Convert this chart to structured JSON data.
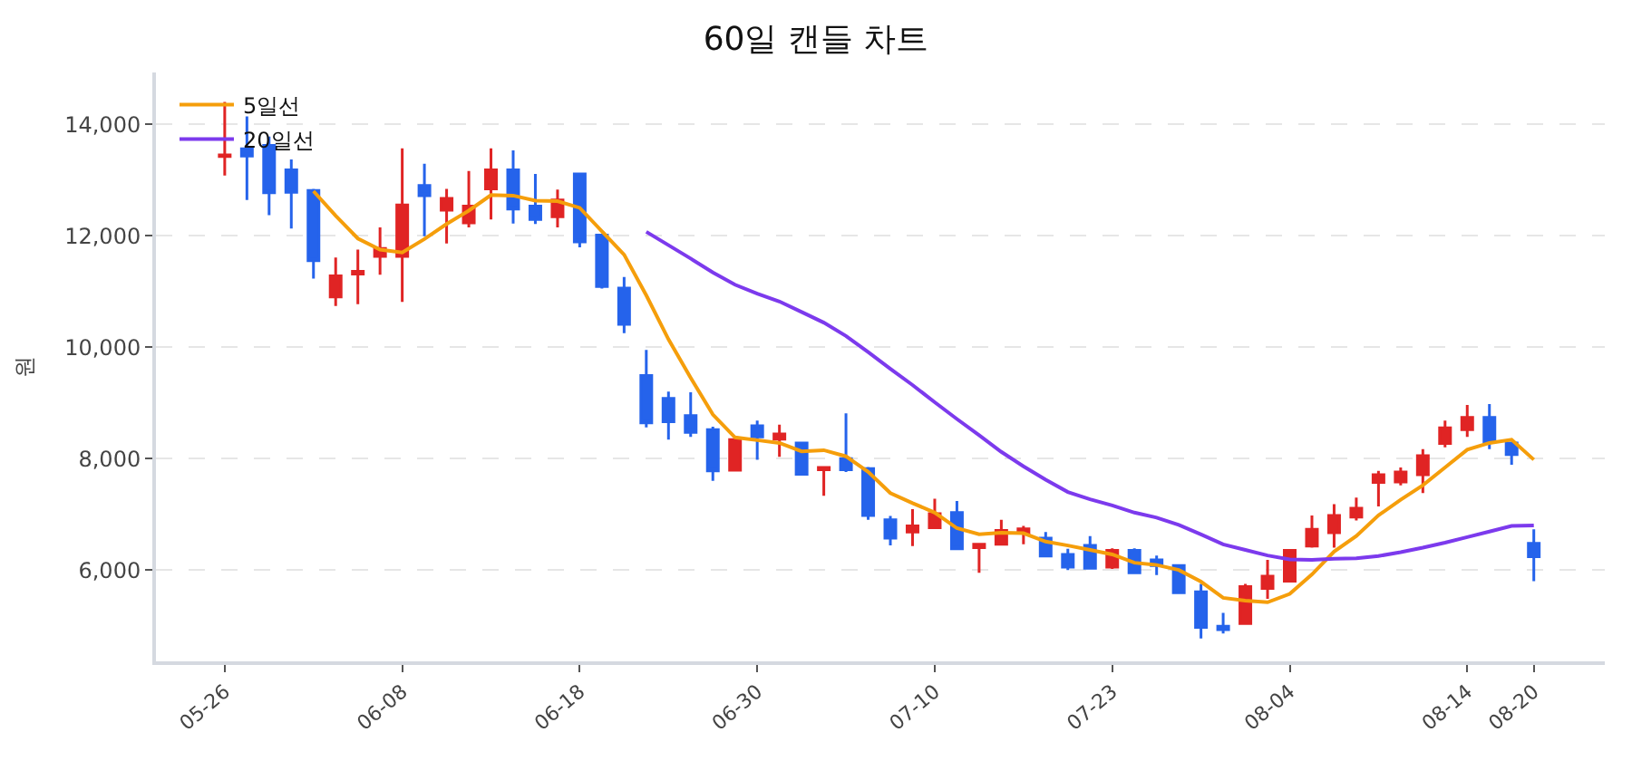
{
  "chart_data": {
    "type": "candlestick",
    "title": "60일 캔들 차트",
    "ylabel": "원",
    "categories": [
      "05-26",
      null,
      null,
      null,
      null,
      null,
      null,
      null,
      "06-08",
      null,
      null,
      null,
      null,
      null,
      null,
      null,
      "06-18",
      null,
      null,
      null,
      null,
      null,
      null,
      null,
      "06-30",
      null,
      null,
      null,
      null,
      null,
      null,
      null,
      "07-10",
      null,
      null,
      null,
      null,
      null,
      null,
      null,
      "07-23",
      null,
      null,
      null,
      null,
      null,
      null,
      null,
      "08-04",
      null,
      null,
      null,
      null,
      null,
      null,
      null,
      "08-14",
      null,
      null,
      "08-20"
    ],
    "ohlc": [
      [
        13420,
        14400,
        13080,
        13450
      ],
      [
        13560,
        14140,
        12640,
        13430
      ],
      [
        13620,
        13780,
        12370,
        12770
      ],
      [
        13180,
        13370,
        12130,
        12780
      ],
      [
        12810,
        12840,
        11230,
        11550
      ],
      [
        10900,
        11610,
        10740,
        11280
      ],
      [
        11310,
        11750,
        10770,
        11360
      ],
      [
        11630,
        12150,
        11300,
        11770
      ],
      [
        11630,
        13570,
        10810,
        12550
      ],
      [
        12900,
        13290,
        11990,
        12720
      ],
      [
        12460,
        12840,
        11860,
        12670
      ],
      [
        12230,
        13160,
        12150,
        12530
      ],
      [
        12840,
        13570,
        12290,
        13180
      ],
      [
        13180,
        13530,
        12220,
        12480
      ],
      [
        12530,
        13110,
        12210,
        12290
      ],
      [
        12340,
        12830,
        12150,
        12640
      ],
      [
        13110,
        13110,
        11790,
        11890
      ],
      [
        12010,
        12010,
        11050,
        11090
      ],
      [
        11060,
        11260,
        10250,
        10410
      ],
      [
        9490,
        9950,
        8560,
        8640
      ],
      [
        9080,
        9200,
        8340,
        8660
      ],
      [
        8770,
        9190,
        8390,
        8470
      ],
      [
        8520,
        8570,
        7600,
        7780
      ],
      [
        7790,
        8340,
        7790,
        8340
      ],
      [
        8590,
        8680,
        7980,
        8390
      ],
      [
        8350,
        8610,
        8030,
        8440
      ],
      [
        8280,
        8280,
        7720,
        7720
      ],
      [
        7800,
        7850,
        7330,
        7840
      ],
      [
        8000,
        8810,
        7760,
        7800
      ],
      [
        7820,
        7850,
        6900,
        6980
      ],
      [
        6900,
        6970,
        6440,
        6570
      ],
      [
        6680,
        7090,
        6430,
        6790
      ],
      [
        6760,
        7280,
        6760,
        7010
      ],
      [
        7030,
        7240,
        6380,
        6380
      ],
      [
        6400,
        6470,
        5950,
        6460
      ],
      [
        6460,
        6900,
        6460,
        6710
      ],
      [
        6660,
        6790,
        6460,
        6740
      ],
      [
        6570,
        6680,
        6230,
        6250
      ],
      [
        6280,
        6380,
        6000,
        6050
      ],
      [
        6440,
        6610,
        6010,
        6030
      ],
      [
        6050,
        6390,
        6020,
        6350
      ],
      [
        6350,
        6390,
        5930,
        5950
      ],
      [
        6180,
        6260,
        5910,
        6080
      ],
      [
        6080,
        6100,
        5590,
        5590
      ],
      [
        5610,
        5750,
        4770,
        4970
      ],
      [
        4990,
        5230,
        4860,
        4930
      ],
      [
        5040,
        5750,
        5020,
        5700
      ],
      [
        5670,
        6180,
        5480,
        5890
      ],
      [
        5800,
        6370,
        5780,
        6350
      ],
      [
        6430,
        6980,
        6400,
        6730
      ],
      [
        6670,
        7180,
        6400,
        6980
      ],
      [
        6950,
        7300,
        6890,
        7110
      ],
      [
        7570,
        7780,
        7140,
        7710
      ],
      [
        7580,
        7840,
        7520,
        7760
      ],
      [
        7710,
        8170,
        7380,
        8050
      ],
      [
        8270,
        8680,
        8200,
        8550
      ],
      [
        8520,
        8960,
        8390,
        8740
      ],
      [
        8740,
        8980,
        8170,
        8300
      ],
      [
        8280,
        8300,
        7890,
        8070
      ],
      [
        6480,
        6730,
        5800,
        6240
      ]
    ],
    "colors": [
      "#e02424",
      "#2563eb",
      "#2563eb",
      "#2563eb",
      "#2563eb",
      "#e02424",
      "#e02424",
      "#e02424",
      "#e02424",
      "#2563eb",
      "#e02424",
      "#e02424",
      "#e02424",
      "#2563eb",
      "#2563eb",
      "#e02424",
      "#2563eb",
      "#2563eb",
      "#2563eb",
      "#2563eb",
      "#2563eb",
      "#2563eb",
      "#2563eb",
      "#e02424",
      "#2563eb",
      "#e02424",
      "#2563eb",
      "#e02424",
      "#2563eb",
      "#2563eb",
      "#2563eb",
      "#e02424",
      "#e02424",
      "#2563eb",
      "#e02424",
      "#e02424",
      "#e02424",
      "#2563eb",
      "#2563eb",
      "#2563eb",
      "#e02424",
      "#2563eb",
      "#2563eb",
      "#2563eb",
      "#2563eb",
      "#2563eb",
      "#e02424",
      "#e02424",
      "#e02424",
      "#e02424",
      "#e02424",
      "#e02424",
      "#e02424",
      "#e02424",
      "#e02424",
      "#e02424",
      "#e02424",
      "#2563eb",
      "#2563eb",
      "#2563eb"
    ],
    "series": [
      {
        "type": "line",
        "name": "5일선",
        "color": "#f59e0b",
        "values": [
          null,
          null,
          null,
          null,
          12800,
          12360,
          11950,
          11750,
          11700,
          11940,
          12210,
          12450,
          12730,
          12720,
          12630,
          12620,
          12500,
          12080,
          11660,
          10930,
          10140,
          9450,
          8790,
          8380,
          8330,
          8280,
          8130,
          8150,
          8040,
          7760,
          7380,
          7200,
          7030,
          6750,
          6640,
          6670,
          6660,
          6510,
          6440,
          6360,
          6280,
          6130,
          6090,
          6000,
          5790,
          5500,
          5450,
          5420,
          5570,
          5920,
          6330,
          6610,
          6980,
          7260,
          7520,
          7840,
          8160,
          8280,
          8340,
          7980
        ]
      },
      {
        "type": "line",
        "name": "20일선",
        "color": "#7c3aed",
        "values": [
          null,
          null,
          null,
          null,
          null,
          null,
          null,
          null,
          null,
          null,
          null,
          null,
          null,
          null,
          null,
          null,
          null,
          null,
          null,
          12070,
          11830,
          11590,
          11340,
          11120,
          10960,
          10820,
          10630,
          10440,
          10200,
          9910,
          9610,
          9320,
          9010,
          8710,
          8420,
          8120,
          7860,
          7620,
          7400,
          7270,
          7160,
          7030,
          6940,
          6810,
          6640,
          6460,
          6360,
          6260,
          6190,
          6180,
          6200,
          6210,
          6250,
          6320,
          6400,
          6490,
          6590,
          6690,
          6790,
          6800
        ]
      }
    ],
    "ylim": [
      4360,
      14930
    ],
    "yticks": [
      {
        "value": 6000,
        "label": "6,000"
      },
      {
        "value": 8000,
        "label": "8,000"
      },
      {
        "value": 10000,
        "label": "10,000"
      },
      {
        "value": 12000,
        "label": "12,000"
      },
      {
        "value": 14000,
        "label": "14,000"
      }
    ],
    "grid": "y",
    "legend": "top left",
    "marker": "none",
    "line_style": "solid"
  }
}
